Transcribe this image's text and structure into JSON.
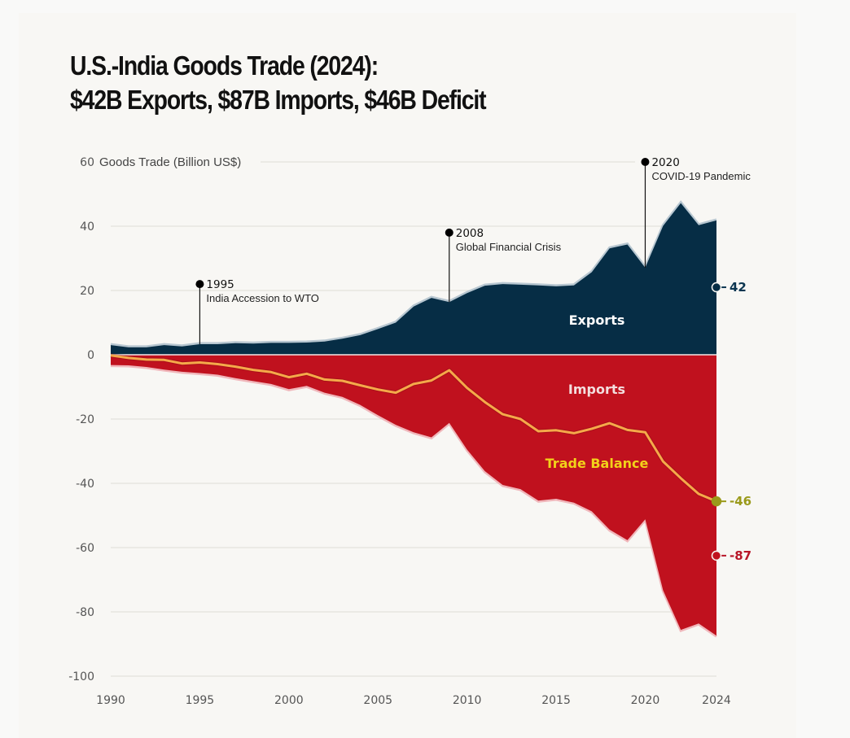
{
  "title": {
    "line1": "U.S.-India Goods Trade (2024):",
    "line2": "$42B Exports, $87B Imports, $46B Deficit"
  },
  "colors": {
    "exports": "#062d45",
    "imports": "#c0111e",
    "balance": "#f5a94a",
    "balance_label": "#f2d21a",
    "balance_end": "#9a9a1a",
    "exports_end": "#0b3550",
    "imports_end": "#b81628",
    "grid": "#e3e1dc",
    "background": "#f8f7f4"
  },
  "chart_data": {
    "type": "area",
    "title": "U.S.-India Goods Trade (2024): $42B Exports, $87B Imports, $46B Deficit",
    "ylabel": "Goods Trade (Billion US$)",
    "xlabel": "",
    "ylim": [
      -100,
      60
    ],
    "xlim": [
      1990,
      2024
    ],
    "grid": true,
    "yticks": [
      60,
      40,
      20,
      0,
      -20,
      -40,
      -60,
      -80,
      -100
    ],
    "ytick_labels": [
      "60",
      "40",
      "20",
      "0",
      "-20",
      "-40",
      "-60",
      "-80",
      "-100"
    ],
    "xticks": [
      1990,
      1995,
      2000,
      2005,
      2010,
      2015,
      2020,
      2024
    ],
    "xtick_labels": [
      "1990",
      "1995",
      "2000",
      "2005",
      "2010",
      "2015",
      "2020",
      "2024"
    ],
    "x": [
      1990,
      1991,
      1992,
      1993,
      1994,
      1995,
      1996,
      1997,
      1998,
      1999,
      2000,
      2001,
      2002,
      2003,
      2004,
      2005,
      2006,
      2007,
      2008,
      2009,
      2010,
      2011,
      2012,
      2013,
      2014,
      2015,
      2016,
      2017,
      2018,
      2019,
      2020,
      2021,
      2022,
      2023,
      2024
    ],
    "series": [
      {
        "name": "Exports",
        "type": "area",
        "values": [
          3.0,
          2.3,
          2.3,
          3.0,
          2.6,
          3.3,
          3.3,
          3.6,
          3.5,
          3.7,
          3.7,
          3.8,
          4.1,
          5.0,
          6.1,
          8.0,
          10.0,
          15.0,
          17.7,
          16.4,
          19.2,
          21.5,
          22.0,
          21.8,
          21.6,
          21.3,
          21.6,
          25.7,
          33.1,
          34.3,
          27.1,
          40.1,
          47.2,
          40.3,
          41.8
        ]
      },
      {
        "name": "Imports",
        "type": "area",
        "values": [
          -3.2,
          -3.3,
          -3.8,
          -4.6,
          -5.3,
          -5.7,
          -6.2,
          -7.3,
          -8.2,
          -9.1,
          -10.7,
          -9.7,
          -11.8,
          -13.1,
          -15.6,
          -18.8,
          -21.8,
          -24.1,
          -25.7,
          -21.2,
          -29.5,
          -36.2,
          -40.5,
          -41.8,
          -45.4,
          -44.8,
          -46.0,
          -48.7,
          -54.4,
          -57.7,
          -51.2,
          -73.3,
          -85.6,
          -83.6,
          -87.4
        ]
      },
      {
        "name": "Trade Balance",
        "type": "line",
        "values": [
          -0.2,
          -1.0,
          -1.5,
          -1.6,
          -2.7,
          -2.4,
          -2.9,
          -3.7,
          -4.7,
          -5.4,
          -7.0,
          -5.9,
          -7.7,
          -8.1,
          -9.5,
          -10.8,
          -11.8,
          -9.1,
          -8.0,
          -4.8,
          -10.3,
          -14.7,
          -18.5,
          -20.0,
          -23.8,
          -23.5,
          -24.4,
          -23.0,
          -21.3,
          -23.4,
          -24.1,
          -33.2,
          -38.4,
          -43.3,
          -45.6
        ]
      }
    ],
    "series_labels": {
      "exports": "Exports",
      "imports": "Imports",
      "balance": "Trade Balance"
    },
    "end_labels": {
      "exports": "42",
      "balance": "-46",
      "imports": "-87"
    },
    "annotations": [
      {
        "year_label": "1995",
        "text": "India Accession to WTO",
        "x": 1995,
        "y": 22
      },
      {
        "year_label": "2008",
        "text": "Global Financial Crisis",
        "x": 2009,
        "y": 38
      },
      {
        "year_label": "2020",
        "text": "COVID-19 Pandemic",
        "x": 2020,
        "y": 60
      }
    ]
  }
}
